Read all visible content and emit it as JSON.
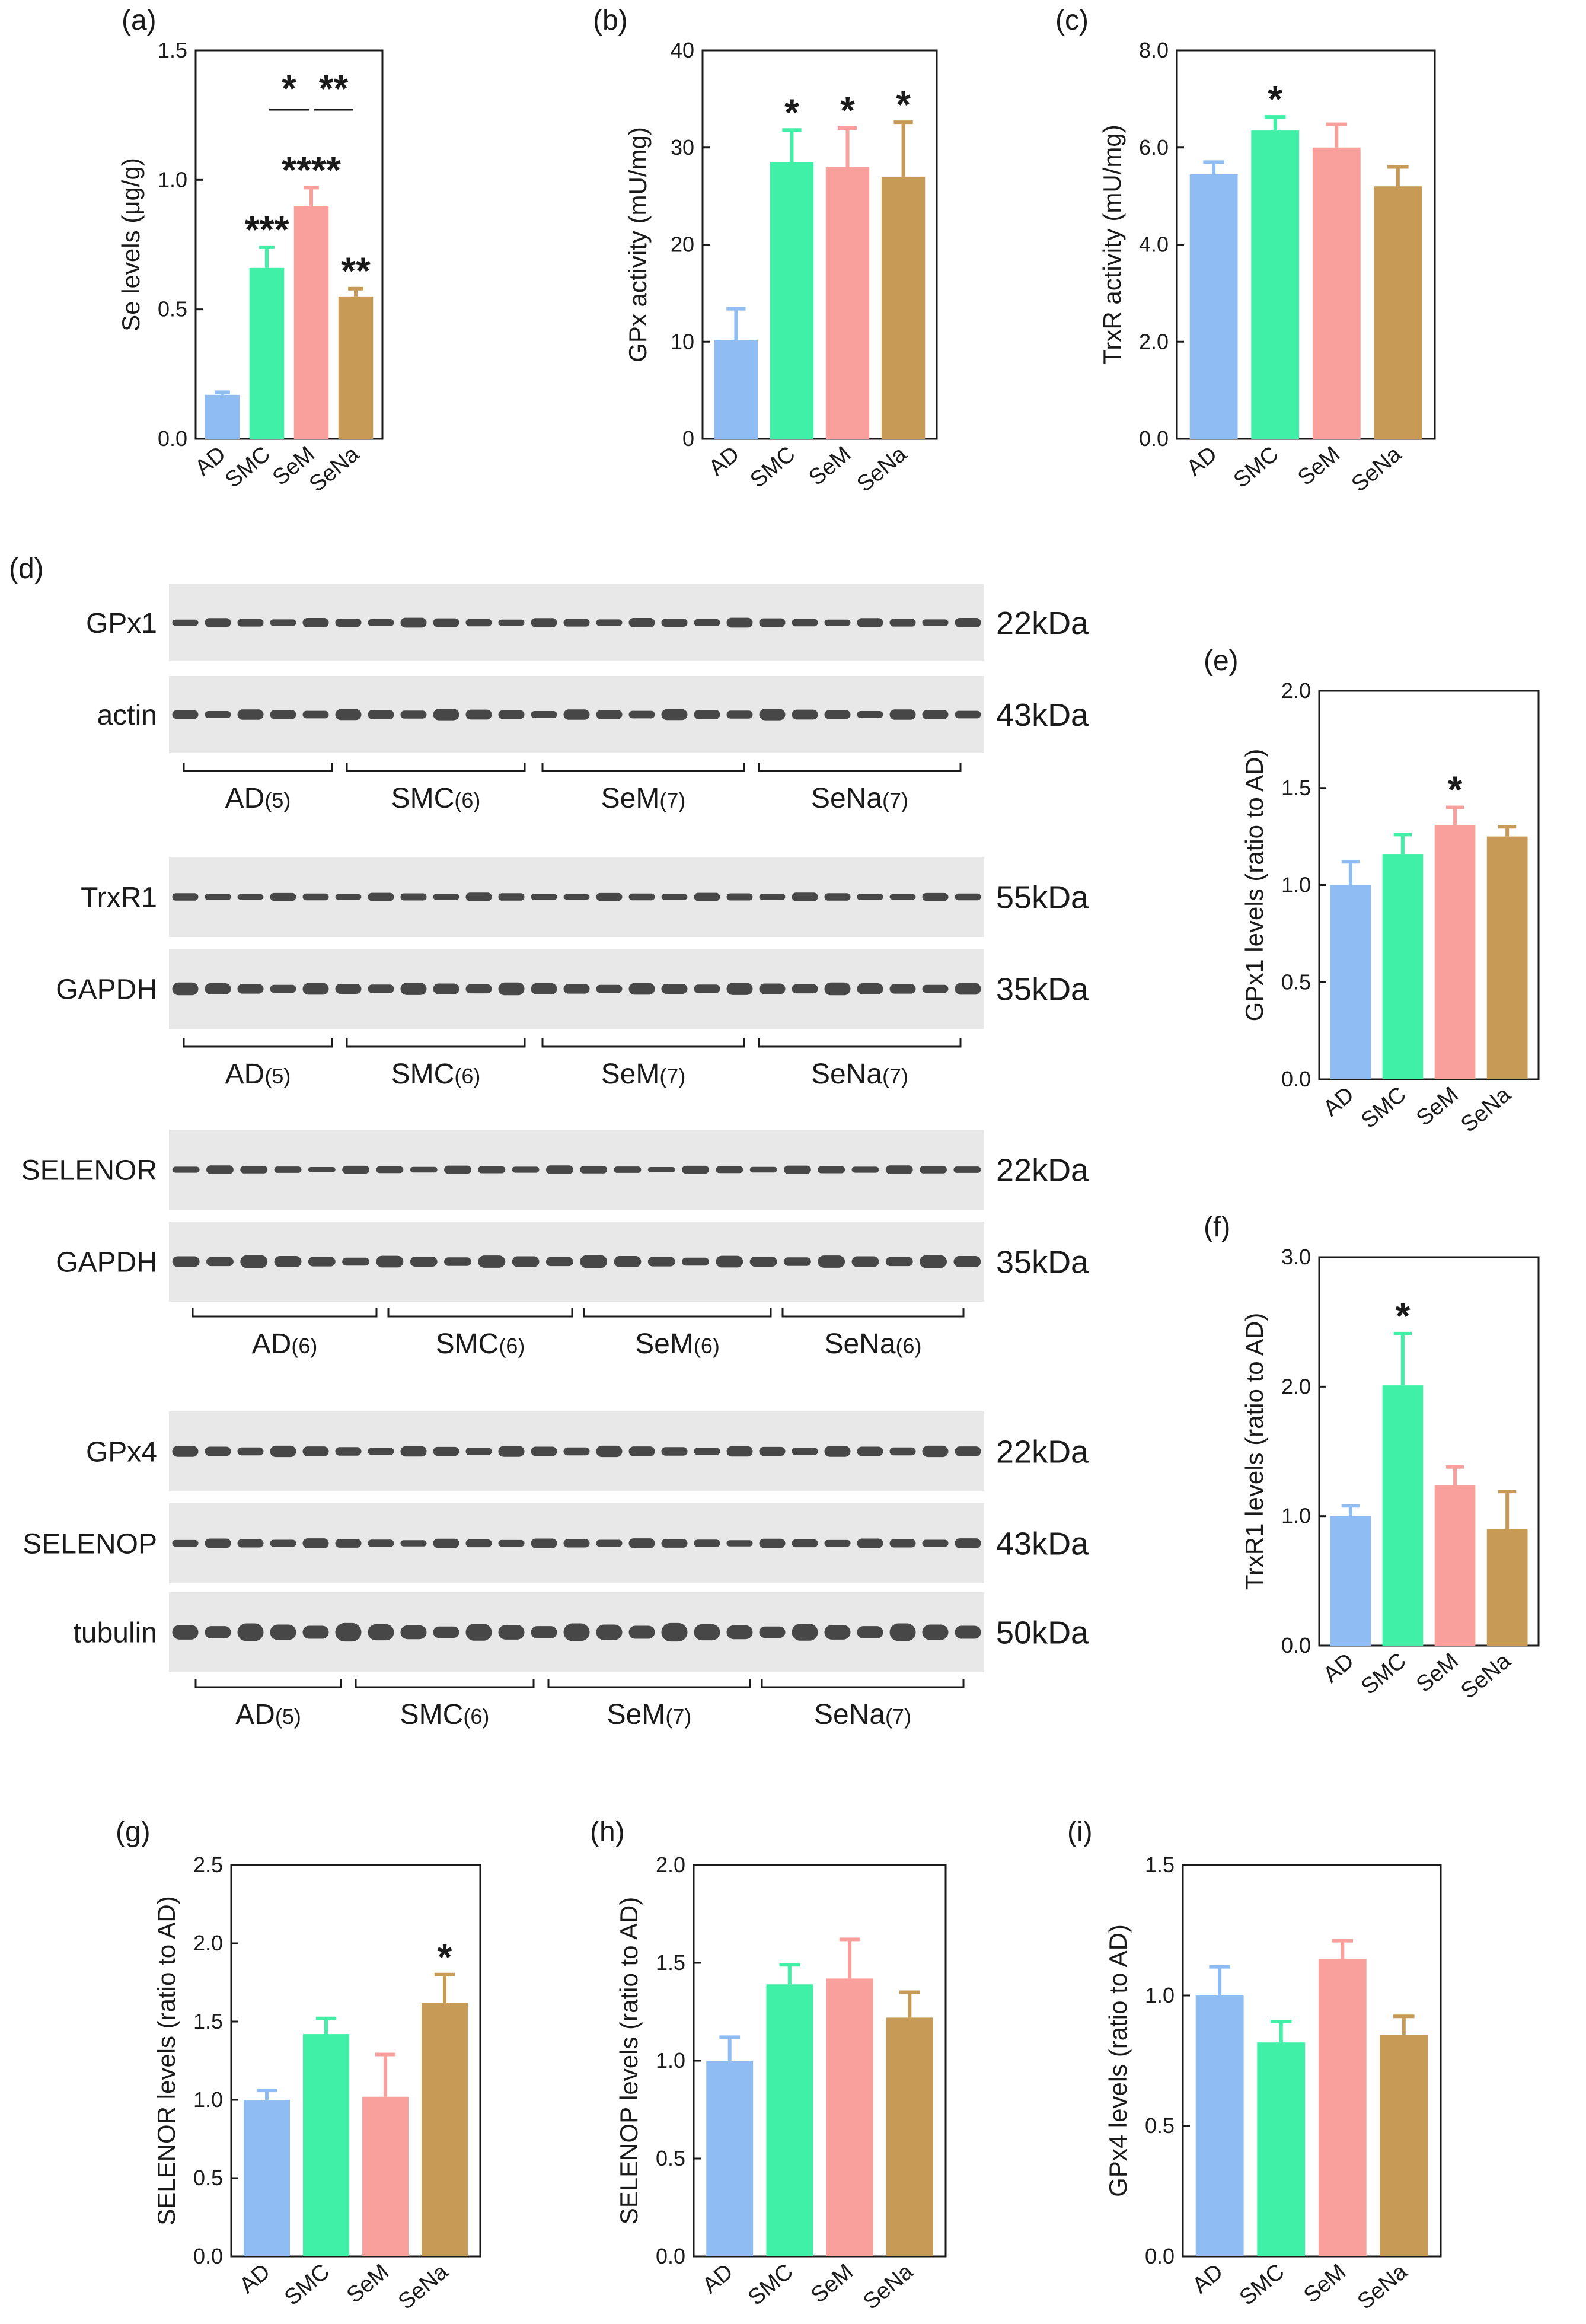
{
  "colors": {
    "AD": "#8fbcf2",
    "SMC": "#3ff0a6",
    "SeM": "#f9a09c",
    "SeNa": "#c79a55",
    "text": "#1a1a1a",
    "blot_bg": "#e8e8e8",
    "band": "#2a2a2a"
  },
  "chart_data": [
    {
      "id": "a",
      "panel_label": "(a)",
      "type": "bar",
      "categories": [
        "AD",
        "SMC",
        "SeM",
        "SeNa"
      ],
      "values": [
        0.17,
        0.66,
        0.9,
        0.55
      ],
      "errors": [
        0.01,
        0.08,
        0.07,
        0.03
      ],
      "ylabel": "Se levels (μg/g)",
      "ylim": [
        0,
        1.5
      ],
      "yticks": [
        "0.0",
        "0.5",
        "1.0",
        "1.5"
      ],
      "yticks_values": [
        0,
        0.5,
        1.0,
        1.5
      ],
      "stars": [
        "",
        "***",
        "****",
        "**"
      ],
      "brackets": [
        {
          "from": 1,
          "to": 2,
          "label": "*"
        },
        {
          "from": 2,
          "to": 3,
          "label": "**"
        }
      ]
    },
    {
      "id": "b",
      "panel_label": "(b)",
      "type": "bar",
      "categories": [
        "AD",
        "SMC",
        "SeM",
        "SeNa"
      ],
      "values": [
        10.2,
        28.5,
        28,
        27
      ],
      "errors": [
        3.2,
        3.3,
        4.0,
        5.6
      ],
      "ylabel": "GPx activity (mU/mg)",
      "ylim": [
        0,
        40
      ],
      "yticks": [
        "0",
        "10",
        "20",
        "30",
        "40"
      ],
      "yticks_values": [
        0,
        10,
        20,
        30,
        40
      ],
      "stars": [
        "",
        "*",
        "*",
        "*"
      ]
    },
    {
      "id": "c",
      "panel_label": "(c)",
      "type": "bar",
      "categories": [
        "AD",
        "SMC",
        "SeM",
        "SeNa"
      ],
      "values": [
        5.45,
        6.35,
        6.0,
        5.2
      ],
      "errors": [
        0.25,
        0.28,
        0.48,
        0.4
      ],
      "ylabel": "TrxR activity (mU/mg)",
      "ylim": [
        0,
        8
      ],
      "yticks": [
        "0.0",
        "2.0",
        "4.0",
        "6.0",
        "8.0"
      ],
      "yticks_values": [
        0,
        2,
        4,
        6,
        8
      ],
      "stars": [
        "",
        "*",
        "",
        ""
      ]
    },
    {
      "id": "e",
      "panel_label": "(e)",
      "type": "bar",
      "categories": [
        "AD",
        "SMC",
        "SeM",
        "SeNa"
      ],
      "values": [
        1.0,
        1.16,
        1.31,
        1.25
      ],
      "errors": [
        0.12,
        0.1,
        0.09,
        0.05
      ],
      "ylabel": "GPx1 levels (ratio to AD)",
      "ylim": [
        0,
        2
      ],
      "yticks": [
        "0.0",
        "0.5",
        "1.0",
        "1.5",
        "2.0"
      ],
      "yticks_values": [
        0,
        0.5,
        1,
        1.5,
        2
      ],
      "stars": [
        "",
        "",
        "*",
        ""
      ]
    },
    {
      "id": "f",
      "panel_label": "(f)",
      "type": "bar",
      "categories": [
        "AD",
        "SMC",
        "SeM",
        "SeNa"
      ],
      "values": [
        1.0,
        2.01,
        1.24,
        0.9
      ],
      "errors": [
        0.08,
        0.4,
        0.14,
        0.29
      ],
      "ylabel": "TrxR1 levels (ratio to AD)",
      "ylim": [
        0,
        3
      ],
      "yticks": [
        "0.0",
        "1.0",
        "2.0",
        "3.0"
      ],
      "yticks_values": [
        0,
        1,
        2,
        3
      ],
      "stars": [
        "",
        "*",
        "",
        ""
      ]
    },
    {
      "id": "g",
      "panel_label": "(g)",
      "type": "bar",
      "categories": [
        "AD",
        "SMC",
        "SeM",
        "SeNa"
      ],
      "values": [
        1.0,
        1.42,
        1.02,
        1.62
      ],
      "errors": [
        0.06,
        0.1,
        0.27,
        0.18
      ],
      "ylabel": "SELENOR levels (ratio to AD)",
      "ylim": [
        0,
        2.5
      ],
      "yticks": [
        "0.0",
        "0.5",
        "1.0",
        "1.5",
        "2.0",
        "2.5"
      ],
      "yticks_values": [
        0,
        0.5,
        1,
        1.5,
        2,
        2.5
      ],
      "stars": [
        "",
        "",
        "",
        "*"
      ]
    },
    {
      "id": "h",
      "panel_label": "(h)",
      "type": "bar",
      "categories": [
        "AD",
        "SMC",
        "SeM",
        "SeNa"
      ],
      "values": [
        1.0,
        1.39,
        1.42,
        1.22
      ],
      "errors": [
        0.12,
        0.1,
        0.2,
        0.13
      ],
      "ylabel": "SELENOP levels (ratio to AD)",
      "ylim": [
        0,
        2
      ],
      "yticks": [
        "0.0",
        "0.5",
        "1.0",
        "1.5",
        "2.0"
      ],
      "yticks_values": [
        0,
        0.5,
        1,
        1.5,
        2
      ],
      "stars": [
        "",
        "",
        "",
        ""
      ]
    },
    {
      "id": "i",
      "panel_label": "(i)",
      "type": "bar",
      "categories": [
        "AD",
        "SMC",
        "SeM",
        "SeNa"
      ],
      "values": [
        1.0,
        0.82,
        1.14,
        0.85
      ],
      "errors": [
        0.11,
        0.08,
        0.07,
        0.07
      ],
      "ylabel": "GPx4 levels (ratio to AD)",
      "ylim": [
        0,
        1.5
      ],
      "yticks": [
        "0.0",
        "0.5",
        "1.0",
        "1.5"
      ],
      "yticks_values": [
        0,
        0.5,
        1,
        1.5
      ],
      "stars": [
        "",
        "",
        "",
        ""
      ]
    }
  ],
  "blots": {
    "panel_label": "(d)",
    "group_sets": [
      {
        "groups": [
          {
            "name": "AD",
            "n": "(5)"
          },
          {
            "name": "SMC",
            "n": "(6)"
          },
          {
            "name": "SeM",
            "n": "(7)"
          },
          {
            "name": "SeNa",
            "n": "(7)"
          }
        ]
      },
      {
        "groups": [
          {
            "name": "AD",
            "n": "(5)"
          },
          {
            "name": "SMC",
            "n": "(6)"
          },
          {
            "name": "SeM",
            "n": "(7)"
          },
          {
            "name": "SeNa",
            "n": "(7)"
          }
        ]
      },
      {
        "groups": [
          {
            "name": "AD",
            "n": "(6)"
          },
          {
            "name": "SMC",
            "n": "(6)"
          },
          {
            "name": "SeM",
            "n": "(6)"
          },
          {
            "name": "SeNa",
            "n": "(6)"
          }
        ]
      },
      {
        "groups": [
          {
            "name": "AD",
            "n": "(5)"
          },
          {
            "name": "SMC",
            "n": "(6)"
          },
          {
            "name": "SeM",
            "n": "(7)"
          },
          {
            "name": "SeNa",
            "n": "(7)"
          }
        ]
      }
    ],
    "strips": [
      {
        "protein": "GPx1",
        "kda": "22kDa"
      },
      {
        "protein": "actin",
        "kda": "43kDa"
      },
      {
        "protein": "TrxR1",
        "kda": "55kDa"
      },
      {
        "protein": "GAPDH",
        "kda": "35kDa"
      },
      {
        "protein": "SELENOR",
        "kda": "22kDa"
      },
      {
        "protein": "GAPDH",
        "kda": "35kDa"
      },
      {
        "protein": "GPx4",
        "kda": "22kDa"
      },
      {
        "protein": "SELENOP",
        "kda": "43kDa"
      },
      {
        "protein": "tubulin",
        "kda": "50kDa"
      }
    ]
  }
}
